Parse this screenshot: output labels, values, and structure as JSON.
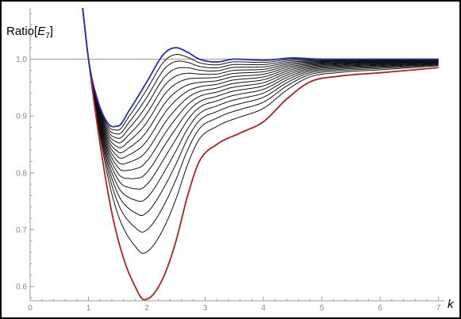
{
  "chart_data": {
    "type": "line",
    "title": "",
    "ylabel_prefix": "Ratio[",
    "ylabel_symbol": "E",
    "ylabel_subscript": "7",
    "ylabel_suffix": "]",
    "xlabel": "k",
    "xlim": [
      0,
      7.1
    ],
    "ylim": [
      0.575,
      1.09
    ],
    "xticks": [
      "0",
      "1",
      "2",
      "3",
      "4",
      "5",
      "6",
      "7"
    ],
    "yticks": [
      "0.6",
      "0.7",
      "0.8",
      "0.9",
      "1.0"
    ],
    "reference_line": 1.0,
    "colors": {
      "reference": "#c48c7c",
      "first_curve": "#b22020",
      "middle_curves": "#111111",
      "last_curve": "#2030c0",
      "axis": "#999999"
    },
    "curve_count": 17,
    "lowest_curve_points": [
      [
        0.9,
        1.09
      ],
      [
        1.0,
        1.0
      ],
      [
        1.2,
        0.85
      ],
      [
        1.4,
        0.73
      ],
      [
        1.6,
        0.65
      ],
      [
        1.8,
        0.6
      ],
      [
        1.95,
        0.577
      ],
      [
        2.1,
        0.585
      ],
      [
        2.3,
        0.62
      ],
      [
        2.5,
        0.68
      ],
      [
        2.7,
        0.76
      ],
      [
        2.9,
        0.82
      ],
      [
        3.2,
        0.85
      ],
      [
        3.6,
        0.87
      ],
      [
        4.0,
        0.89
      ],
      [
        4.4,
        0.93
      ],
      [
        4.8,
        0.96
      ],
      [
        5.3,
        0.97
      ],
      [
        6.0,
        0.976
      ],
      [
        7.0,
        0.985
      ]
    ],
    "highest_curve_points": [
      [
        0.9,
        1.09
      ],
      [
        1.0,
        1.0
      ],
      [
        1.15,
        0.93
      ],
      [
        1.35,
        0.885
      ],
      [
        1.5,
        0.882
      ],
      [
        1.7,
        0.91
      ],
      [
        2.0,
        0.96
      ],
      [
        2.3,
        1.01
      ],
      [
        2.5,
        1.02
      ],
      [
        2.7,
        1.012
      ],
      [
        2.9,
        1.0
      ],
      [
        3.2,
        0.995
      ],
      [
        3.5,
        1.0
      ],
      [
        4.0,
        0.998
      ],
      [
        4.5,
        1.002
      ],
      [
        5.0,
        1.0
      ],
      [
        7.0,
        1.0
      ]
    ]
  }
}
